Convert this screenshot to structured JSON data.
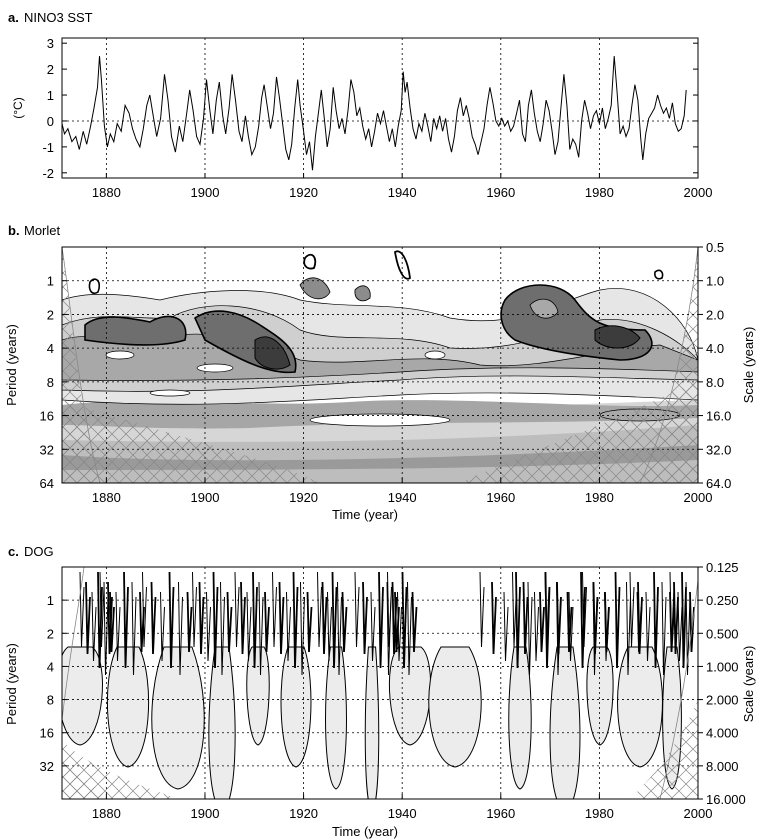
{
  "chart_data": [
    {
      "type": "line",
      "panel_label": "a.",
      "title": "NINO3 SST",
      "ylabel": "(°C)",
      "xlim": [
        1871,
        2000
      ],
      "ylim": [
        -2.2,
        3.2
      ],
      "x_ticks": [
        "1880",
        "1900",
        "1920",
        "1940",
        "1960",
        "1980",
        "2000"
      ],
      "y_ticks": [
        "-2",
        "-1",
        "0",
        "1",
        "2",
        "3"
      ],
      "grid": "dotted vertical at 1880-1980, dotted horizontal at 0",
      "series": [
        {
          "values": [
            [
              1871.0,
              -0.1
            ],
            [
              1871.5,
              -0.5
            ],
            [
              1872.2,
              -0.3
            ],
            [
              1873.0,
              -0.8
            ],
            [
              1873.8,
              -0.6
            ],
            [
              1874.5,
              -1.1
            ],
            [
              1875.3,
              -0.4
            ],
            [
              1876.0,
              -0.9
            ],
            [
              1876.8,
              -0.2
            ],
            [
              1877.5,
              0.5
            ],
            [
              1878.2,
              1.3
            ],
            [
              1878.6,
              2.5
            ],
            [
              1879.0,
              1.6
            ],
            [
              1879.6,
              -0.2
            ],
            [
              1880.2,
              -1.0
            ],
            [
              1880.8,
              -0.5
            ],
            [
              1881.5,
              -0.8
            ],
            [
              1882.2,
              -0.1
            ],
            [
              1883.0,
              -0.4
            ],
            [
              1883.8,
              0.6
            ],
            [
              1884.6,
              0.3
            ],
            [
              1885.3,
              -0.3
            ],
            [
              1886.0,
              -0.7
            ],
            [
              1886.8,
              -1.0
            ],
            [
              1887.5,
              -0.3
            ],
            [
              1888.2,
              0.6
            ],
            [
              1888.8,
              1.0
            ],
            [
              1889.5,
              0.2
            ],
            [
              1890.2,
              -0.6
            ],
            [
              1891.0,
              0.1
            ],
            [
              1891.8,
              1.8
            ],
            [
              1892.5,
              0.8
            ],
            [
              1893.2,
              -0.6
            ],
            [
              1894.0,
              -1.2
            ],
            [
              1894.8,
              -0.2
            ],
            [
              1895.5,
              -0.8
            ],
            [
              1896.3,
              0.3
            ],
            [
              1896.9,
              1.2
            ],
            [
              1897.6,
              0.4
            ],
            [
              1898.3,
              -0.6
            ],
            [
              1899.0,
              -0.9
            ],
            [
              1899.7,
              0.1
            ],
            [
              1900.3,
              1.6
            ],
            [
              1901.0,
              0.4
            ],
            [
              1901.6,
              -0.5
            ],
            [
              1902.3,
              0.8
            ],
            [
              1902.9,
              1.5
            ],
            [
              1903.6,
              0.2
            ],
            [
              1904.2,
              -0.5
            ],
            [
              1904.9,
              0.5
            ],
            [
              1905.5,
              1.8
            ],
            [
              1906.2,
              0.8
            ],
            [
              1906.9,
              -0.4
            ],
            [
              1907.5,
              -0.8
            ],
            [
              1908.2,
              0.2
            ],
            [
              1908.8,
              -0.6
            ],
            [
              1909.5,
              -1.3
            ],
            [
              1910.2,
              -1.0
            ],
            [
              1910.9,
              -0.2
            ],
            [
              1911.5,
              0.9
            ],
            [
              1912.0,
              1.4
            ],
            [
              1912.6,
              0.6
            ],
            [
              1913.3,
              -0.3
            ],
            [
              1913.9,
              0.3
            ],
            [
              1914.5,
              1.7
            ],
            [
              1915.1,
              0.9
            ],
            [
              1915.8,
              -0.2
            ],
            [
              1916.4,
              -1.1
            ],
            [
              1917.0,
              -1.5
            ],
            [
              1917.6,
              -0.9
            ],
            [
              1918.2,
              0.5
            ],
            [
              1918.8,
              1.6
            ],
            [
              1919.3,
              0.6
            ],
            [
              1920.0,
              -0.4
            ],
            [
              1920.6,
              -1.3
            ],
            [
              1921.2,
              -0.8
            ],
            [
              1921.8,
              -1.9
            ],
            [
              1922.4,
              -0.6
            ],
            [
              1923.0,
              0.3
            ],
            [
              1923.6,
              1.2
            ],
            [
              1924.2,
              0.1
            ],
            [
              1924.8,
              -1.0
            ],
            [
              1925.4,
              -0.3
            ],
            [
              1926.0,
              1.3
            ],
            [
              1926.6,
              0.4
            ],
            [
              1927.2,
              -0.3
            ],
            [
              1927.8,
              0.1
            ],
            [
              1928.4,
              -0.5
            ],
            [
              1929.0,
              0.4
            ],
            [
              1929.6,
              1.6
            ],
            [
              1930.2,
              1.1
            ],
            [
              1930.8,
              0.2
            ],
            [
              1931.4,
              0.5
            ],
            [
              1932.0,
              -0.2
            ],
            [
              1932.6,
              -0.7
            ],
            [
              1933.2,
              -0.3
            ],
            [
              1933.8,
              -1.0
            ],
            [
              1934.4,
              -0.4
            ],
            [
              1935.0,
              0.3
            ],
            [
              1935.6,
              -0.1
            ],
            [
              1936.2,
              0.4
            ],
            [
              1936.8,
              -0.2
            ],
            [
              1937.4,
              -0.8
            ],
            [
              1938.0,
              -0.3
            ],
            [
              1938.6,
              -1.0
            ],
            [
              1939.2,
              -0.2
            ],
            [
              1939.8,
              0.4
            ],
            [
              1940.2,
              1.9
            ],
            [
              1940.6,
              1.1
            ],
            [
              1941.0,
              1.5
            ],
            [
              1941.6,
              0.5
            ],
            [
              1942.2,
              -0.3
            ],
            [
              1942.8,
              -0.7
            ],
            [
              1943.4,
              -0.1
            ],
            [
              1944.0,
              -0.4
            ],
            [
              1944.6,
              0.3
            ],
            [
              1945.2,
              -0.2
            ],
            [
              1945.8,
              -0.8
            ],
            [
              1946.4,
              0.1
            ],
            [
              1947.0,
              -0.3
            ],
            [
              1947.6,
              0.2
            ],
            [
              1948.2,
              -0.4
            ],
            [
              1948.8,
              0.1
            ],
            [
              1949.4,
              -0.7
            ],
            [
              1950.0,
              -1.2
            ],
            [
              1950.6,
              -0.6
            ],
            [
              1951.2,
              0.4
            ],
            [
              1951.8,
              0.9
            ],
            [
              1952.4,
              0.2
            ],
            [
              1953.0,
              0.6
            ],
            [
              1953.6,
              0.1
            ],
            [
              1954.2,
              -0.6
            ],
            [
              1954.8,
              -0.9
            ],
            [
              1955.4,
              -1.3
            ],
            [
              1956.0,
              -0.8
            ],
            [
              1956.6,
              -0.3
            ],
            [
              1957.2,
              0.6
            ],
            [
              1957.8,
              1.3
            ],
            [
              1958.4,
              0.7
            ],
            [
              1959.0,
              0.0
            ],
            [
              1959.6,
              -0.2
            ],
            [
              1960.2,
              0.1
            ],
            [
              1960.8,
              -0.2
            ],
            [
              1961.4,
              0.0
            ],
            [
              1962.0,
              -0.4
            ],
            [
              1962.6,
              -0.2
            ],
            [
              1963.2,
              0.3
            ],
            [
              1963.8,
              0.8
            ],
            [
              1964.4,
              -0.5
            ],
            [
              1965.0,
              -0.8
            ],
            [
              1965.6,
              0.6
            ],
            [
              1966.2,
              1.2
            ],
            [
              1966.8,
              0.3
            ],
            [
              1967.4,
              -0.4
            ],
            [
              1968.0,
              -0.8
            ],
            [
              1968.6,
              -0.1
            ],
            [
              1969.2,
              0.8
            ],
            [
              1969.8,
              0.4
            ],
            [
              1970.4,
              -0.4
            ],
            [
              1971.0,
              -1.3
            ],
            [
              1971.6,
              -0.8
            ],
            [
              1972.2,
              0.5
            ],
            [
              1972.8,
              1.8
            ],
            [
              1973.4,
              0.6
            ],
            [
              1974.0,
              -1.1
            ],
            [
              1974.6,
              -0.7
            ],
            [
              1975.2,
              -0.9
            ],
            [
              1975.8,
              -1.4
            ],
            [
              1976.4,
              0.0
            ],
            [
              1977.0,
              0.8
            ],
            [
              1977.6,
              0.3
            ],
            [
              1978.2,
              -0.3
            ],
            [
              1978.8,
              0.2
            ],
            [
              1979.4,
              0.4
            ],
            [
              1980.0,
              -0.1
            ],
            [
              1980.6,
              0.5
            ],
            [
              1981.2,
              -0.3
            ],
            [
              1981.8,
              0.1
            ],
            [
              1982.4,
              0.6
            ],
            [
              1983.0,
              2.5
            ],
            [
              1983.6,
              1.1
            ],
            [
              1984.2,
              -0.5
            ],
            [
              1984.8,
              -0.2
            ],
            [
              1985.4,
              -0.6
            ],
            [
              1986.0,
              -0.3
            ],
            [
              1986.6,
              0.6
            ],
            [
              1987.2,
              1.4
            ],
            [
              1987.8,
              0.8
            ],
            [
              1988.4,
              -0.7
            ],
            [
              1988.8,
              -1.5
            ],
            [
              1989.4,
              -0.5
            ],
            [
              1990.0,
              0.1
            ],
            [
              1990.6,
              0.3
            ],
            [
              1991.2,
              0.5
            ],
            [
              1991.8,
              1.0
            ],
            [
              1992.4,
              0.6
            ],
            [
              1993.0,
              0.3
            ],
            [
              1993.6,
              0.5
            ],
            [
              1994.2,
              0.1
            ],
            [
              1994.8,
              0.7
            ],
            [
              1995.4,
              -0.1
            ],
            [
              1996.0,
              -0.4
            ],
            [
              1996.6,
              -0.3
            ],
            [
              1997.2,
              0.2
            ],
            [
              1997.6,
              1.2
            ]
          ]
        }
      ]
    },
    {
      "type": "heatmap",
      "panel_label": "b.",
      "title": "Morlet",
      "xlabel": "Time (year)",
      "ylabel": "Period (years)",
      "ylabel_right": "Scale (years)",
      "xlim": [
        1871,
        2000
      ],
      "ylim": [
        0.5,
        64
      ],
      "log_y": true,
      "x_ticks": [
        "1880",
        "1900",
        "1920",
        "1940",
        "1960",
        "1980",
        "2000"
      ],
      "y_ticks": [
        "1",
        "2",
        "4",
        "8",
        "16",
        "32",
        "64"
      ],
      "y_ticks_right": [
        "0.5",
        "1.0",
        "2.0",
        "4.0",
        "8.0",
        "16.0",
        "32.0",
        "64.0"
      ],
      "grid": "dotted",
      "note_shading": "filled contours of wavelet power; cross-hatch marks cone of influence"
    },
    {
      "type": "heatmap",
      "panel_label": "c.",
      "title": "DOG",
      "xlabel": "Time (year)",
      "ylabel": "Period (years)",
      "ylabel_right": "Scale (years)",
      "xlim": [
        1871,
        2000
      ],
      "ylim": [
        0.5,
        64
      ],
      "log_y": true,
      "x_ticks": [
        "1880",
        "1900",
        "1920",
        "1940",
        "1960",
        "1980",
        "2000"
      ],
      "y_ticks": [
        "1",
        "2",
        "4",
        "8",
        "16",
        "32"
      ],
      "y_ticks_right": [
        "0.125",
        "0.250",
        "0.500",
        "1.000",
        "2.000",
        "4.000",
        "8.000",
        "16.000"
      ],
      "grid": "dotted"
    }
  ]
}
